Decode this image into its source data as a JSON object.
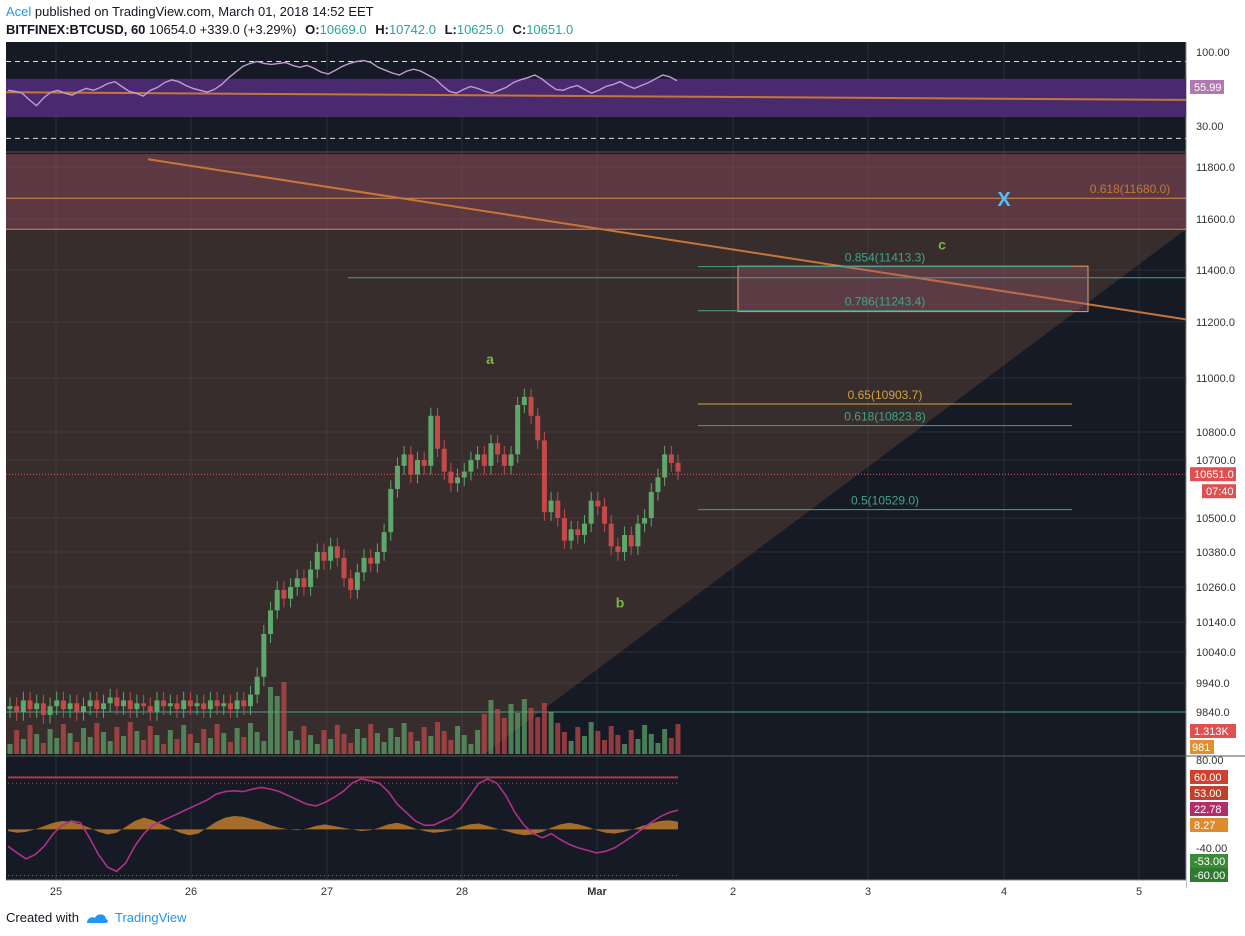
{
  "header": {
    "author": "Acel",
    "published_text": "published on TradingView.com, March 01, 2018 14:52 EET",
    "symbol": "BITFINEX:BTCUSD, 60",
    "last": "10654.0",
    "change": "+339.0 (+3.29%)",
    "o_label": "O:",
    "o": "10669.0",
    "h_label": "H:",
    "h": "10742.0",
    "l_label": "L:",
    "l": "10625.0",
    "c_label": "C:",
    "c": "10651.0"
  },
  "footer": {
    "created_with": "Created with",
    "brand": "TradingView"
  },
  "colors": {
    "background": "#161a25",
    "rsi_band": "#4a2a6e",
    "rsi_line": "#c39bd3",
    "trendline": "#c8753a",
    "up": "#5ea86b",
    "down": "#c44a4a",
    "fib": "#3fa38b",
    "fib_gold": "#d4a23a",
    "wave_label": "#7ab648",
    "x_marker": "#4fc3f7"
  },
  "chart_data": [
    {
      "type": "line",
      "name": "RSI panel",
      "y_ticks": [
        "100.00",
        "30.00"
      ],
      "current_label": "55.99",
      "ylim": [
        0,
        100
      ],
      "bands": [
        30,
        70
      ],
      "values": [
        58,
        57,
        55,
        48,
        42,
        50,
        56,
        58,
        55,
        53,
        57,
        60,
        58,
        61,
        65,
        67,
        62,
        57,
        55,
        52,
        58,
        61,
        66,
        69,
        67,
        63,
        60,
        58,
        56,
        59,
        64,
        71,
        77,
        83,
        86,
        88,
        86,
        85,
        86,
        87,
        84,
        82,
        84,
        81,
        77,
        75,
        79,
        83,
        86,
        88,
        89,
        87,
        82,
        79,
        76,
        74,
        78,
        80,
        78,
        74,
        70,
        63,
        57,
        55,
        59,
        62,
        60,
        57,
        55,
        58,
        61,
        66,
        69,
        71,
        74,
        70,
        64,
        59,
        58,
        61,
        63,
        59,
        55,
        58,
        62,
        64,
        67,
        63,
        60,
        63,
        66,
        70,
        74,
        72,
        68
      ],
      "midline_start": 56,
      "midline_end": 48
    },
    {
      "type": "candlestick",
      "name": "BTCUSD 60",
      "y_ticks": [
        "11800.0",
        "11600.0",
        "11400.0",
        "11200.0",
        "11000.0",
        "10800.0",
        "10700.0",
        "10500.0",
        "10380.0",
        "10260.0",
        "10140.0",
        "10040.0",
        "9940.0",
        "9840.0"
      ],
      "x_ticks": [
        "25",
        "26",
        "27",
        "28",
        "Mar",
        "2",
        "3",
        "4",
        "5"
      ],
      "closes": [
        9860,
        9840,
        9880,
        9850,
        9870,
        9830,
        9860,
        9880,
        9850,
        9870,
        9840,
        9860,
        9880,
        9850,
        9870,
        9890,
        9860,
        9880,
        9850,
        9870,
        9860,
        9840,
        9880,
        9860,
        9870,
        9850,
        9880,
        9860,
        9870,
        9850,
        9880,
        9860,
        9870,
        9850,
        9880,
        9860,
        9900,
        9960,
        10100,
        10180,
        10250,
        10220,
        10260,
        10290,
        10260,
        10320,
        10380,
        10350,
        10400,
        10360,
        10290,
        10250,
        10310,
        10360,
        10340,
        10380,
        10450,
        10600,
        10680,
        10720,
        10650,
        10700,
        10680,
        10860,
        10740,
        10660,
        10620,
        10640,
        10660,
        10700,
        10720,
        10680,
        10760,
        10720,
        10680,
        10720,
        10900,
        10930,
        10860,
        10770,
        10520,
        10560,
        10500,
        10420,
        10460,
        10440,
        10480,
        10560,
        10540,
        10480,
        10400,
        10380,
        10440,
        10400,
        10480,
        10500,
        10590,
        10640,
        10720,
        10690,
        10660
      ],
      "price_label": "10651.0",
      "countdown_label": "07:40",
      "volume_labels": [
        "1.313K",
        "981"
      ],
      "fib_levels": [
        {
          "label": "0.854(11413.3)",
          "value": 11413.3
        },
        {
          "label": "0.786(11243.4)",
          "value": 11243.4
        },
        {
          "label": "0.65(10903.7)",
          "value": 10903.7
        },
        {
          "label": "0.618(10823.8)",
          "value": 10823.8
        },
        {
          "label": "0.5(10529.0)",
          "value": 10529.0
        },
        {
          "label": "0.618(11680.0)",
          "value": 11680.0
        }
      ],
      "wave_labels": [
        "a",
        "b",
        "c"
      ],
      "x_marker": "X"
    },
    {
      "type": "area",
      "name": "Oscillator panel",
      "y_ticks": [
        "80.00",
        "-40.00"
      ],
      "level_labels": [
        "60.00",
        "53.00",
        "22.78",
        "8.27",
        "-53.00",
        "-60.00"
      ],
      "ylim": [
        -65,
        85
      ],
      "histogram": [
        -2,
        -4,
        -3,
        0,
        4,
        8,
        10,
        9,
        6,
        2,
        -3,
        -6,
        -4,
        3,
        10,
        14,
        11,
        6,
        1,
        -4,
        -7,
        -5,
        2,
        9,
        14,
        16,
        15,
        12,
        9,
        5,
        2,
        0,
        -1,
        1,
        4,
        6,
        4,
        2,
        0,
        -2,
        -1,
        2,
        6,
        8,
        5,
        1,
        -2,
        -4,
        -3,
        -1,
        3,
        6,
        7,
        4,
        1,
        -2,
        -5,
        -7,
        -6,
        -3,
        2,
        6,
        8,
        6,
        3,
        -1,
        -4,
        -5,
        -3,
        0,
        4,
        7,
        10,
        11,
        9
      ],
      "line": [
        -20,
        -28,
        -35,
        -30,
        -20,
        -5,
        5,
        10,
        8,
        -10,
        -30,
        -45,
        -50,
        -40,
        -20,
        -5,
        5,
        10,
        15,
        20,
        25,
        30,
        35,
        42,
        45,
        46,
        45,
        48,
        50,
        48,
        45,
        40,
        35,
        30,
        28,
        32,
        38,
        45,
        55,
        60,
        58,
        55,
        45,
        30,
        20,
        10,
        5,
        5,
        10,
        15,
        25,
        40,
        55,
        60,
        55,
        40,
        20,
        5,
        -5,
        -10,
        -5,
        -12,
        -18,
        -22,
        -25,
        -28,
        -26,
        -22,
        -15,
        -8,
        0,
        8,
        15,
        20,
        23
      ]
    }
  ]
}
